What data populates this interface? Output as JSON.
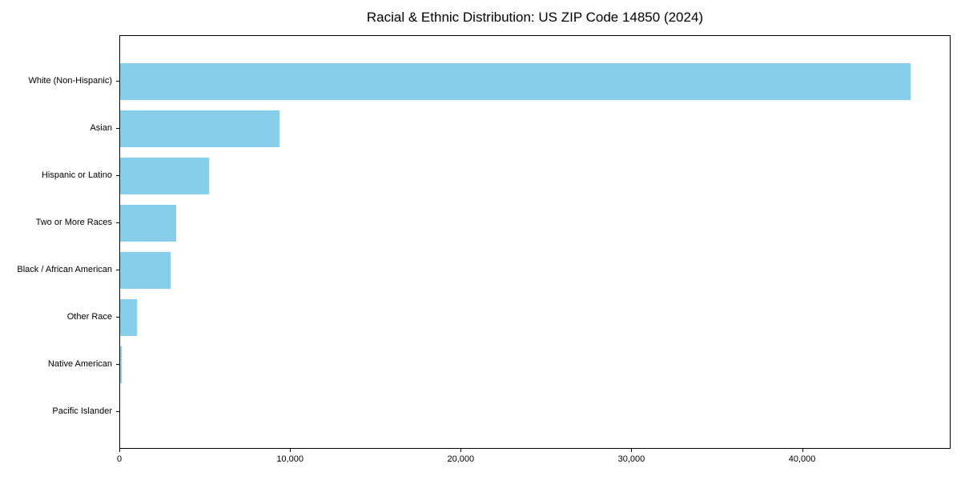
{
  "chart_data": {
    "type": "bar",
    "orientation": "horizontal",
    "title": "Racial & Ethnic Distribution: US ZIP Code 14850 (2024)",
    "xlabel": "",
    "ylabel": "",
    "categories": [
      "White (Non-Hispanic)",
      "Asian",
      "Hispanic or Latino",
      "Two or More Races",
      "Black / African American",
      "Other Race",
      "Native American",
      "Pacific Islander"
    ],
    "values": [
      46350,
      9400,
      5250,
      3330,
      3000,
      1030,
      140,
      20
    ],
    "xlim": [
      0,
      48700
    ],
    "x_ticks": [
      0,
      10000,
      20000,
      30000,
      40000
    ],
    "x_tick_labels": [
      "0",
      "10,000",
      "20,000",
      "30,000",
      "40,000"
    ],
    "bar_color": "#87CEEB",
    "axis_color": "#000000",
    "grid": false,
    "legend": false
  }
}
